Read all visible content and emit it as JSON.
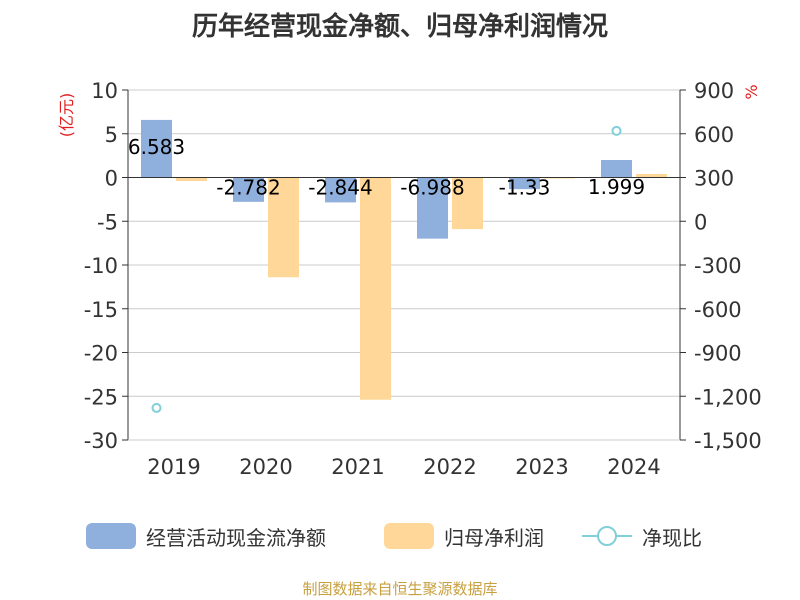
{
  "title": "历年经营现金净额、归母净利润情况",
  "footer": "制图数据来自恒生聚源数据库",
  "colors": {
    "cash_flow": "#8fb0dd",
    "net_profit": "#ffd899",
    "ratio": "#7fd0d8",
    "unit": "#e02020",
    "grid": "#cccccc",
    "axis": "#333333"
  },
  "chart_data": {
    "type": "bar",
    "title": "历年经营现金净额、归母净利润情况",
    "categories": [
      "2019",
      "2020",
      "2021",
      "2022",
      "2023",
      "2024"
    ],
    "left_axis": {
      "unit": "(亿元)",
      "ylim": [
        -30,
        10
      ],
      "ticks": [
        10,
        5,
        0,
        -5,
        -10,
        -15,
        -20,
        -25,
        -30
      ],
      "tick_labels": [
        "10",
        "5",
        "0",
        "-5",
        "-10",
        "-15",
        "-20",
        "-25",
        "-30"
      ]
    },
    "right_axis": {
      "unit": "%",
      "ylim": [
        -1500,
        900
      ],
      "ticks": [
        900,
        600,
        300,
        0,
        -300,
        -600,
        -900,
        -1200,
        -1500
      ],
      "tick_labels": [
        "900",
        "600",
        "300",
        "0",
        "-300",
        "-600",
        "-900",
        "-1,200",
        "-1,500"
      ]
    },
    "series": [
      {
        "name": "经营活动现金流净额",
        "kind": "bar",
        "axis": "left",
        "values": [
          6.583,
          -2.782,
          -2.844,
          -6.988,
          -1.33,
          1.999
        ],
        "labels": [
          "6.583",
          "-2.782",
          "-2.844",
          "-6.988",
          "-1.33",
          "1.999"
        ]
      },
      {
        "name": "归母净利润",
        "kind": "bar",
        "axis": "left",
        "values": [
          -0.4,
          -11.4,
          -25.4,
          -5.9,
          -0.1,
          0.4
        ]
      },
      {
        "name": "净现比",
        "kind": "scatter",
        "axis": "right",
        "values": [
          -1280,
          null,
          null,
          null,
          null,
          620
        ]
      }
    ],
    "grid": true,
    "legend_position": "bottom"
  }
}
